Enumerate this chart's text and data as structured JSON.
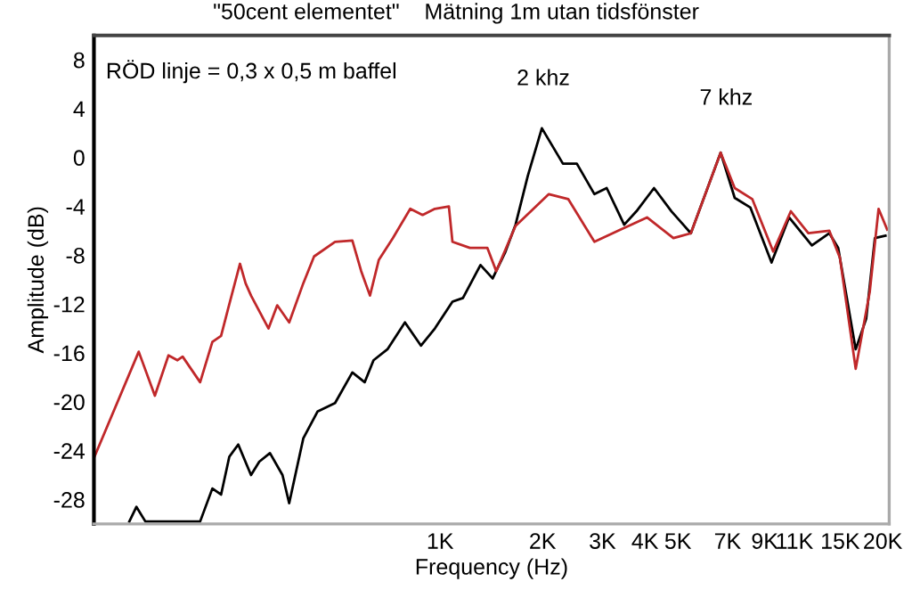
{
  "chart_data": {
    "type": "line",
    "title": "\"50cent elementet\"    Mätning 1m utan tidsfönster",
    "xlabel": "Frequency (Hz)",
    "ylabel": "Amplitude (dB)",
    "log": "x",
    "xlim": [
      96,
      20900
    ],
    "ylim": [
      -30,
      10
    ],
    "xticks": [
      {
        "value": 1000,
        "label": "1K"
      },
      {
        "value": 2000,
        "label": "2K"
      },
      {
        "value": 3000,
        "label": "3K"
      },
      {
        "value": 4000,
        "label": "4K"
      },
      {
        "value": 5000,
        "label": "5K"
      },
      {
        "value": 7000,
        "label": "7K"
      },
      {
        "value": 9000,
        "label": "9K"
      },
      {
        "value": 11000,
        "label": "11K"
      },
      {
        "value": 15000,
        "label": "15K"
      },
      {
        "value": 20000,
        "label": "20K"
      }
    ],
    "yticks": [
      8,
      4,
      0,
      -4,
      -8,
      -12,
      -16,
      -20,
      -24,
      -28
    ],
    "grid": false,
    "legend": false,
    "marker": "none",
    "line_style": "solid",
    "annotations": [
      "RÖD linje = 0,3 x 0,5 m baffel",
      "2 khz",
      "7 khz"
    ],
    "series": [
      {
        "color": "#000000",
        "x": [
          122,
          128,
          136,
          197,
          214,
          227,
          240,
          255,
          278,
          294,
          316,
          344,
          360,
          396,
          436,
          491,
          552,
          600,
          637,
          700,
          788,
          878,
          965,
          1087,
          1167,
          1314,
          1427,
          1551,
          1666,
          1810,
          1991,
          2296,
          2523,
          2842,
          3088,
          3476,
          3777,
          4254,
          4786,
          5458,
          6678,
          7345,
          8169,
          9424,
          10612,
          12384,
          13940,
          14800,
          16660,
          17888,
          18970,
          20380
        ],
        "values": [
          -29.8,
          -28.6,
          -29.8,
          -29.8,
          -27.1,
          -27.6,
          -24.5,
          -23.5,
          -26.0,
          -24.9,
          -24.2,
          -26.0,
          -28.3,
          -23.0,
          -20.8,
          -20.1,
          -17.6,
          -18.4,
          -16.6,
          -15.7,
          -13.5,
          -15.4,
          -14.0,
          -11.8,
          -11.5,
          -8.8,
          -9.9,
          -7.8,
          -5.5,
          -1.5,
          2.4,
          -0.5,
          -0.5,
          -3.0,
          -2.5,
          -5.5,
          -4.4,
          -2.5,
          -4.4,
          -6.2,
          0.4,
          -3.3,
          -4.1,
          -8.6,
          -4.9,
          -7.2,
          -6.2,
          -7.4,
          -15.7,
          -13.2,
          -6.6,
          -6.4
        ]
      },
      {
        "color": "#c0282a",
        "x": [
          96,
          130,
          145,
          159,
          169,
          175,
          197,
          214,
          227,
          238,
          258,
          268,
          278,
          313,
          332,
          360,
          396,
          426,
          491,
          552,
          586,
          622,
          660,
          726,
          817,
          888,
          965,
          1061,
          1087,
          1223,
          1377,
          1462,
          1666,
          2087,
          2379,
          2842,
          3396,
          4057,
          4850,
          5458,
          6678,
          7345,
          8270,
          9532,
          10740,
          12090,
          13940,
          14970,
          16660,
          18320,
          19450,
          20620
        ],
        "values": [
          -24.6,
          -15.9,
          -19.5,
          -16.2,
          -16.6,
          -16.3,
          -18.4,
          -15.1,
          -14.6,
          -12.4,
          -8.7,
          -10.3,
          -11.3,
          -14.0,
          -12.1,
          -13.5,
          -10.3,
          -8.1,
          -6.9,
          -6.8,
          -9.3,
          -11.3,
          -8.4,
          -6.6,
          -4.2,
          -4.7,
          -4.2,
          -4.0,
          -6.9,
          -7.4,
          -7.4,
          -9.3,
          -5.6,
          -3.0,
          -3.4,
          -6.9,
          -5.9,
          -4.9,
          -6.6,
          -6.2,
          0.4,
          -2.5,
          -3.4,
          -7.7,
          -4.4,
          -6.2,
          -6.0,
          -8.2,
          -17.3,
          -11.0,
          -4.2,
          -5.9
        ]
      }
    ]
  }
}
